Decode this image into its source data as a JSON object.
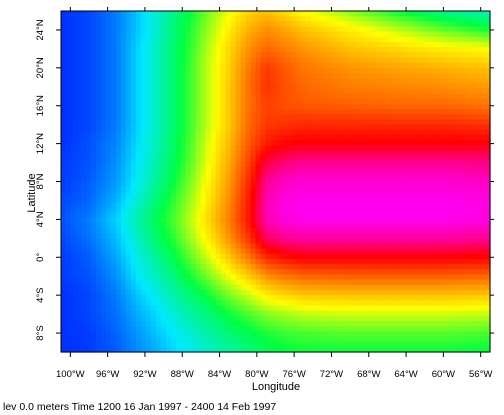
{
  "chart_data": {
    "type": "heatmap",
    "title": "",
    "xlabel": "Longitude",
    "ylabel": "Latitude",
    "x_range": [
      -101,
      -55
    ],
    "y_range": [
      -10,
      26
    ],
    "x_ticks": [
      {
        "value": -100,
        "label": "100°W"
      },
      {
        "value": -96,
        "label": "96°W"
      },
      {
        "value": -92,
        "label": "92°W"
      },
      {
        "value": -88,
        "label": "88°W"
      },
      {
        "value": -84,
        "label": "84°W"
      },
      {
        "value": -80,
        "label": "80°W"
      },
      {
        "value": -76,
        "label": "76°W"
      },
      {
        "value": -72,
        "label": "72°W"
      },
      {
        "value": -68,
        "label": "68°W"
      },
      {
        "value": -64,
        "label": "64°W"
      },
      {
        "value": -60,
        "label": "60°W"
      },
      {
        "value": -56,
        "label": "56°W"
      }
    ],
    "y_ticks": [
      {
        "value": 24,
        "label": "24°N"
      },
      {
        "value": 20,
        "label": "20°N"
      },
      {
        "value": 16,
        "label": "16°N"
      },
      {
        "value": 12,
        "label": "12°N"
      },
      {
        "value": 8,
        "label": "8°N"
      },
      {
        "value": 4,
        "label": "4°N"
      },
      {
        "value": 0,
        "label": "0°"
      },
      {
        "value": -4,
        "label": "4°S"
      },
      {
        "value": -8,
        "label": "8°S"
      }
    ],
    "colormap": [
      "#0030ff",
      "#00e8ff",
      "#00ff40",
      "#ffff00",
      "#ff8000",
      "#ff0000",
      "#ff00ff"
    ],
    "value_range": [
      0,
      1
    ],
    "grid": false,
    "legend": "none",
    "x": [
      -101,
      -98,
      -95,
      -93,
      -91,
      -89,
      -87,
      -85,
      -83,
      -81,
      -79,
      -77,
      -75,
      -70,
      -65,
      -60,
      -55
    ],
    "y": [
      26,
      24,
      22,
      20,
      18,
      16,
      14,
      12,
      10,
      8,
      6,
      4,
      2,
      0,
      -2,
      -4,
      -6,
      -8,
      -10
    ],
    "z": [
      [
        0.0,
        0.02,
        0.07,
        0.13,
        0.2,
        0.27,
        0.34,
        0.42,
        0.49,
        0.55,
        0.58,
        0.54,
        0.5,
        0.42,
        0.34,
        0.27,
        0.22
      ],
      [
        0.0,
        0.02,
        0.07,
        0.13,
        0.2,
        0.28,
        0.36,
        0.44,
        0.52,
        0.6,
        0.65,
        0.62,
        0.58,
        0.52,
        0.46,
        0.4,
        0.35
      ],
      [
        0.0,
        0.02,
        0.07,
        0.14,
        0.21,
        0.29,
        0.37,
        0.46,
        0.55,
        0.64,
        0.7,
        0.67,
        0.64,
        0.58,
        0.55,
        0.52,
        0.5
      ],
      [
        0.0,
        0.02,
        0.07,
        0.14,
        0.21,
        0.29,
        0.38,
        0.47,
        0.56,
        0.67,
        0.76,
        0.72,
        0.68,
        0.64,
        0.62,
        0.6,
        0.58
      ],
      [
        0.0,
        0.02,
        0.07,
        0.14,
        0.21,
        0.29,
        0.38,
        0.47,
        0.57,
        0.68,
        0.77,
        0.73,
        0.7,
        0.67,
        0.66,
        0.65,
        0.63
      ],
      [
        0.0,
        0.02,
        0.07,
        0.14,
        0.21,
        0.29,
        0.38,
        0.47,
        0.57,
        0.68,
        0.75,
        0.73,
        0.72,
        0.71,
        0.7,
        0.7,
        0.68
      ],
      [
        0.0,
        0.02,
        0.07,
        0.14,
        0.21,
        0.29,
        0.38,
        0.47,
        0.57,
        0.69,
        0.76,
        0.77,
        0.78,
        0.78,
        0.78,
        0.78,
        0.77
      ],
      [
        0.0,
        0.03,
        0.08,
        0.15,
        0.22,
        0.3,
        0.39,
        0.49,
        0.59,
        0.71,
        0.8,
        0.83,
        0.84,
        0.84,
        0.84,
        0.84,
        0.84
      ],
      [
        0.01,
        0.03,
        0.09,
        0.16,
        0.23,
        0.31,
        0.4,
        0.5,
        0.61,
        0.74,
        0.88,
        0.91,
        0.93,
        0.93,
        0.93,
        0.93,
        0.92
      ],
      [
        0.01,
        0.04,
        0.1,
        0.17,
        0.25,
        0.33,
        0.42,
        0.52,
        0.63,
        0.77,
        0.93,
        0.96,
        0.97,
        0.97,
        0.97,
        0.97,
        0.96
      ],
      [
        0.02,
        0.05,
        0.12,
        0.2,
        0.28,
        0.36,
        0.44,
        0.54,
        0.65,
        0.79,
        0.95,
        0.98,
        0.99,
        0.99,
        0.99,
        0.99,
        0.98
      ],
      [
        0.03,
        0.07,
        0.15,
        0.23,
        0.31,
        0.38,
        0.46,
        0.56,
        0.67,
        0.8,
        0.95,
        0.98,
        0.99,
        0.99,
        0.99,
        0.99,
        0.98
      ],
      [
        0.02,
        0.06,
        0.13,
        0.21,
        0.29,
        0.36,
        0.44,
        0.53,
        0.64,
        0.76,
        0.9,
        0.93,
        0.94,
        0.94,
        0.94,
        0.94,
        0.93
      ],
      [
        0.01,
        0.04,
        0.11,
        0.18,
        0.25,
        0.32,
        0.4,
        0.48,
        0.57,
        0.67,
        0.78,
        0.82,
        0.84,
        0.84,
        0.84,
        0.84,
        0.83
      ],
      [
        0.01,
        0.03,
        0.09,
        0.16,
        0.22,
        0.28,
        0.35,
        0.42,
        0.49,
        0.56,
        0.64,
        0.68,
        0.7,
        0.71,
        0.71,
        0.71,
        0.7
      ],
      [
        0.0,
        0.02,
        0.07,
        0.13,
        0.18,
        0.24,
        0.29,
        0.35,
        0.41,
        0.46,
        0.52,
        0.55,
        0.57,
        0.58,
        0.58,
        0.58,
        0.57
      ],
      [
        0.0,
        0.02,
        0.06,
        0.11,
        0.15,
        0.2,
        0.25,
        0.29,
        0.34,
        0.38,
        0.42,
        0.44,
        0.46,
        0.47,
        0.47,
        0.47,
        0.46
      ],
      [
        0.0,
        0.01,
        0.05,
        0.09,
        0.13,
        0.17,
        0.21,
        0.25,
        0.29,
        0.32,
        0.35,
        0.37,
        0.38,
        0.39,
        0.39,
        0.39,
        0.38
      ],
      [
        0.0,
        0.01,
        0.04,
        0.08,
        0.11,
        0.15,
        0.18,
        0.22,
        0.25,
        0.28,
        0.31,
        0.33,
        0.34,
        0.34,
        0.34,
        0.34,
        0.33
      ]
    ],
    "caption": "lev 0.0 meters Time 1200 16 Jan 1997 - 2400 14 Feb 1997"
  }
}
